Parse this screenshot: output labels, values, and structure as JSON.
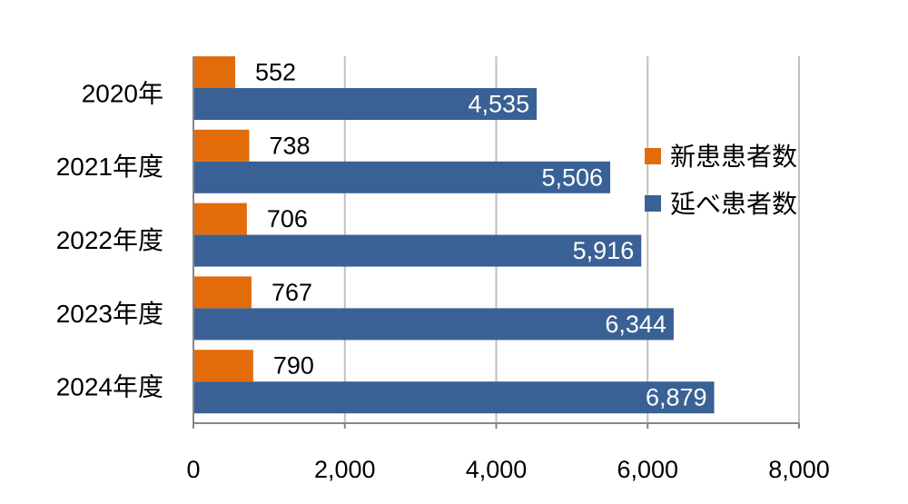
{
  "chart_data": {
    "type": "bar",
    "orientation": "horizontal",
    "categories": [
      "2020年",
      "2021年度",
      "2022年度",
      "2023年度",
      "2024年度"
    ],
    "series": [
      {
        "name": "新患患者数",
        "color": "#E36C0A",
        "values": [
          552,
          738,
          706,
          767,
          790
        ],
        "labels": [
          "552",
          "738",
          "706",
          "767",
          "790"
        ]
      },
      {
        "name": "延べ患者数",
        "color": "#3A6195",
        "values": [
          4535,
          5506,
          5916,
          6344,
          6879
        ],
        "labels": [
          "4,535",
          "5,506",
          "5,916",
          "6,344",
          "6,879"
        ]
      }
    ],
    "xlim": [
      0,
      8000
    ],
    "xticks": [
      0,
      2000,
      4000,
      6000,
      8000
    ],
    "xtick_labels": [
      "0",
      "2,000",
      "4,000",
      "6,000",
      "8,000"
    ],
    "grid": true,
    "legend_position": "right"
  }
}
